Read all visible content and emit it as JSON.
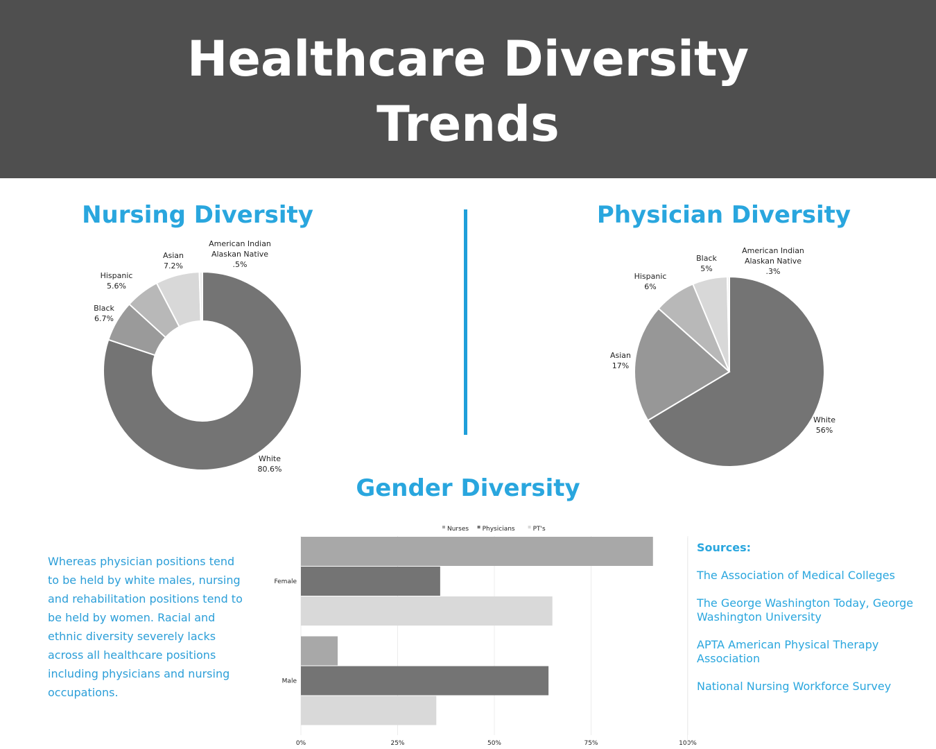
{
  "title_line1": "Healthcare Diversity",
  "title_line2": "Trends",
  "colors": {
    "header_bg": "#4f4f4f",
    "accent": "#29a6de",
    "divider": "#1f9fda",
    "paragraph": "#2b9ed8"
  },
  "paragraph": "Whereas physician positions tend to be held by white males, nursing and rehabilitation positions tend to be held by women. Racial and ethnic diversity severely lacks across all healthcare positions including physicians and nursing occupations.",
  "sources": {
    "title": "Sources:",
    "items": [
      "The Association of Medical Colleges",
      "The George Washington Today, George Washington University",
      "APTA American Physical Therapy Association",
      "National Nursing Workforce Survey"
    ]
  },
  "chart_data": [
    {
      "type": "pie",
      "style": "donut",
      "title": "Nursing Diversity",
      "slices": [
        {
          "name": "White",
          "value": 80.6,
          "label": "80.6%",
          "color": "#747474"
        },
        {
          "name": "Black",
          "value": 6.7,
          "label": "6.7%",
          "color": "#9a9a9a"
        },
        {
          "name": "Hispanic",
          "value": 5.6,
          "label": "5.6%",
          "color": "#b8b8b8"
        },
        {
          "name": "Asian",
          "value": 7.2,
          "label": "7.2%",
          "color": "#d8d8d8"
        },
        {
          "name": "American Indian Alaskan Native",
          "value": 0.5,
          "label": ".5%",
          "color": "#ededed"
        }
      ]
    },
    {
      "type": "pie",
      "title": "Physician Diversity",
      "slices": [
        {
          "name": "White",
          "value": 56,
          "label": "56%",
          "color": "#747474"
        },
        {
          "name": "Asian",
          "value": 17,
          "label": "17%",
          "color": "#979797"
        },
        {
          "name": "Hispanic",
          "value": 6,
          "label": "6%",
          "color": "#b8b8b8"
        },
        {
          "name": "Black",
          "value": 5,
          "label": "5%",
          "color": "#d8d8d8"
        },
        {
          "name": "American Indian Alaskan Native",
          "value": 0.3,
          "label": ".3%",
          "color": "#ededed"
        }
      ]
    },
    {
      "type": "bar",
      "orientation": "horizontal",
      "title": "Gender Diversity",
      "categories": [
        "Female",
        "Male"
      ],
      "series": [
        {
          "name": "Nurses",
          "values": [
            91,
            9.5
          ],
          "color": "#a8a8a8"
        },
        {
          "name": "Physicians",
          "values": [
            36,
            64
          ],
          "color": "#747474"
        },
        {
          "name": "PT's",
          "values": [
            65,
            35
          ],
          "color": "#d9d9d9"
        }
      ],
      "xlim": [
        0,
        100
      ],
      "xticks": [
        "0%",
        "25%",
        "50%",
        "75%",
        "100%"
      ],
      "legend": "top",
      "grid": true
    }
  ]
}
